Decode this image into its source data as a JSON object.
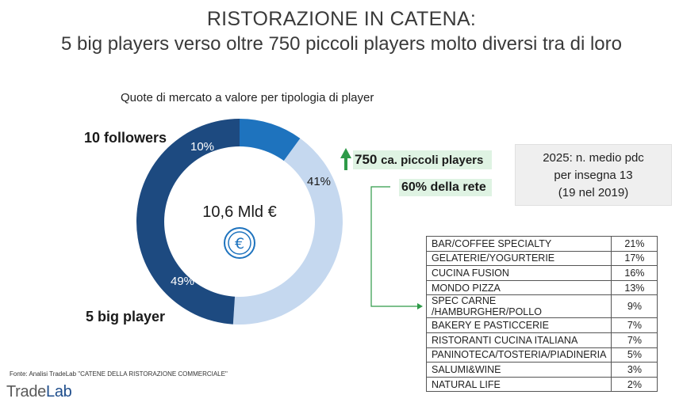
{
  "header": {
    "title_line1": "RISTORAZIONE IN CATENA:",
    "title_line2": "5 big players verso oltre 750 piccoli players molto diversi tra di loro"
  },
  "chart_data": {
    "type": "pie",
    "title": "Quote di mercato a valore per tipologia di player",
    "center_label": "10,6 Mld €",
    "categories": [
      "10 followers",
      "750 ca. piccoli players",
      "5 big player"
    ],
    "values": [
      10,
      41,
      49
    ],
    "value_labels": [
      "10%",
      "41%",
      "49%"
    ],
    "colors": [
      "#1e73be",
      "#c5d8ef",
      "#1d4a80"
    ]
  },
  "labels": {
    "followers": "10 followers",
    "big_player": "5 big player",
    "small_players": "750 ca. piccoli players",
    "small_players_num": "750",
    "small_players_text": "ca. piccoli players",
    "rete": "60% della rete"
  },
  "info_box": {
    "line1": "2025: n. medio pdc",
    "line2": "per insegna 13",
    "line3": "(19 nel 2019)"
  },
  "segments": [
    {
      "name": "BAR/COFFEE SPECIALTY",
      "value": "21%"
    },
    {
      "name": "GELATERIE/YOGURTERIE",
      "value": "17%"
    },
    {
      "name": "CUCINA FUSION",
      "value": "16%"
    },
    {
      "name": "MONDO PIZZA",
      "value": "13%"
    },
    {
      "name": "SPEC CARNE /HAMBURGHER/POLLO",
      "value": "9%"
    },
    {
      "name": "BAKERY E PASTICCERIE",
      "value": "7%"
    },
    {
      "name": "RISTORANTI CUCINA ITALIANA",
      "value": "7%"
    },
    {
      "name": "PANINOTECA/TOSTERIA/PIADINERIA",
      "value": "5%"
    },
    {
      "name": "SALUMI&WINE",
      "value": "3%"
    },
    {
      "name": "NATURAL LIFE",
      "value": "2%"
    }
  ],
  "footer": {
    "source": "Fonte: Analisi TradeLab \"CATENE DELLA RISTORAZIONE COMMERCIALE\"",
    "logo_part1": "Trade",
    "logo_part2": "Lab"
  }
}
